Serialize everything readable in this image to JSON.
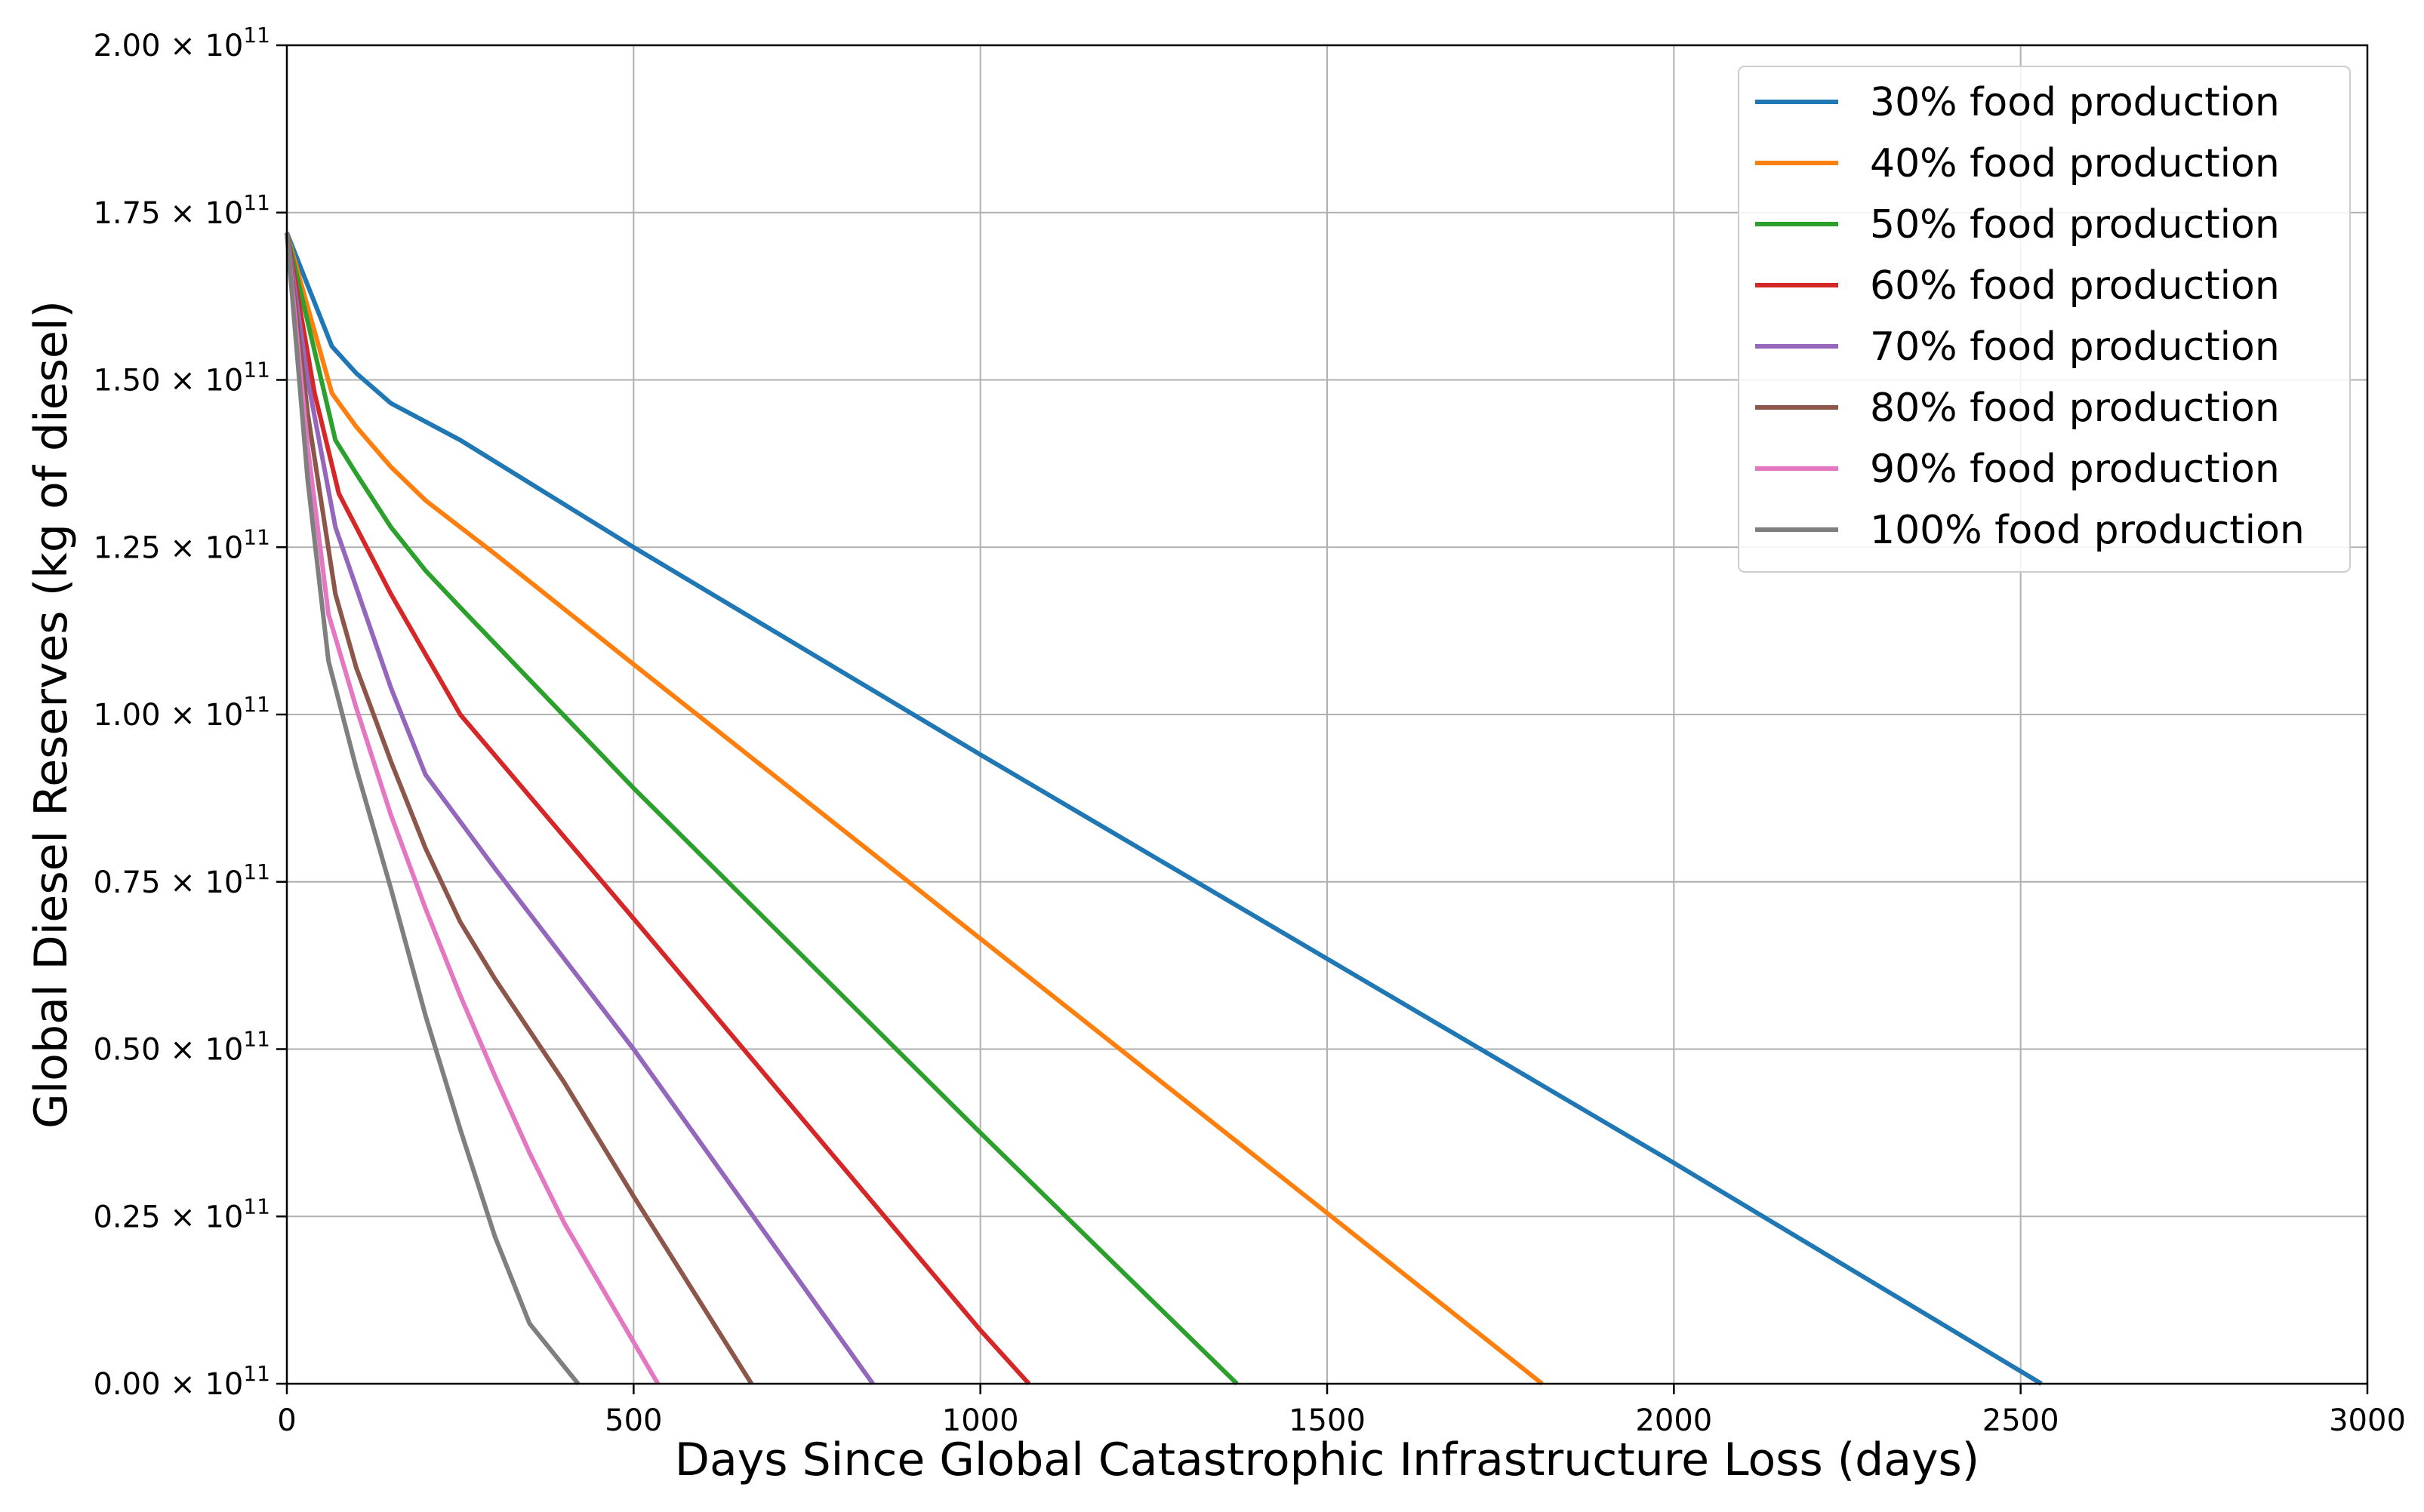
{
  "chart_data": {
    "type": "line",
    "title": "",
    "xlabel": "Days Since Global Catastrophic Infrastructure Loss (days)",
    "ylabel": "Global Diesel Reserves (kg of diesel)",
    "xlim": [
      0,
      3000
    ],
    "ylim": [
      0,
      2.0
    ],
    "y_scale_note": "×10^11",
    "grid": true,
    "legend_position": "top-right",
    "x_ticks": [
      0,
      500,
      1000,
      1500,
      2000,
      2500,
      3000
    ],
    "x_tick_labels": [
      "0",
      "500",
      "1000",
      "1500",
      "2000",
      "2500",
      "3000"
    ],
    "y_ticks": [
      0,
      0.25,
      0.5,
      0.75,
      1.0,
      1.25,
      1.5,
      1.75,
      2.0
    ],
    "y_tick_mantissas": [
      "0.00",
      "0.25",
      "0.50",
      "0.75",
      "1.00",
      "1.25",
      "1.50",
      "1.75",
      "2.00"
    ],
    "y_tick_times": "×",
    "y_tick_base": "10",
    "y_tick_exponent": "11",
    "series": [
      {
        "name": "30% food production",
        "color": "#1f77b4",
        "x": [
          0,
          65,
          100,
          150,
          250,
          500,
          1000,
          1500,
          2000,
          2530
        ],
        "y": [
          1.72,
          1.55,
          1.51,
          1.465,
          1.41,
          1.25,
          0.94,
          0.635,
          0.33,
          0.0
        ]
      },
      {
        "name": "40% food production",
        "color": "#ff7f0e",
        "x": [
          0,
          65,
          100,
          150,
          200,
          300,
          500,
          1000,
          1500,
          1810
        ],
        "y": [
          1.72,
          1.48,
          1.43,
          1.37,
          1.32,
          1.24,
          1.075,
          0.665,
          0.255,
          0.0
        ]
      },
      {
        "name": "50% food production",
        "color": "#2ca02c",
        "x": [
          0,
          70,
          100,
          150,
          200,
          250,
          500,
          1000,
          1370
        ],
        "y": [
          1.72,
          1.41,
          1.36,
          1.28,
          1.215,
          1.16,
          0.89,
          0.375,
          0.0
        ]
      },
      {
        "name": "60% food production",
        "color": "#d62728",
        "x": [
          0,
          40,
          75,
          150,
          200,
          250,
          500,
          1000,
          1070
        ],
        "y": [
          1.72,
          1.48,
          1.33,
          1.18,
          1.09,
          1.0,
          0.695,
          0.08,
          0.0
        ]
      },
      {
        "name": "70% food production",
        "color": "#9467bd",
        "x": [
          0,
          30,
          70,
          100,
          150,
          200,
          300,
          500,
          845
        ],
        "y": [
          1.72,
          1.5,
          1.28,
          1.19,
          1.04,
          0.91,
          0.77,
          0.5,
          0.0
        ]
      },
      {
        "name": "80% food production",
        "color": "#8c564b",
        "x": [
          0,
          30,
          70,
          100,
          150,
          200,
          250,
          300,
          400,
          500,
          670
        ],
        "y": [
          1.72,
          1.45,
          1.18,
          1.07,
          0.93,
          0.8,
          0.69,
          0.605,
          0.45,
          0.28,
          0.0
        ]
      },
      {
        "name": "90% food production",
        "color": "#e377c2",
        "x": [
          0,
          30,
          60,
          100,
          150,
          200,
          250,
          300,
          350,
          400,
          535
        ],
        "y": [
          1.72,
          1.4,
          1.15,
          1.01,
          0.85,
          0.71,
          0.58,
          0.46,
          0.345,
          0.24,
          0.0
        ]
      },
      {
        "name": "100% food production",
        "color": "#7f7f7f",
        "x": [
          0,
          30,
          60,
          100,
          150,
          200,
          250,
          300,
          350,
          420
        ],
        "y": [
          1.72,
          1.35,
          1.08,
          0.92,
          0.74,
          0.55,
          0.38,
          0.22,
          0.09,
          0.0
        ]
      }
    ]
  }
}
